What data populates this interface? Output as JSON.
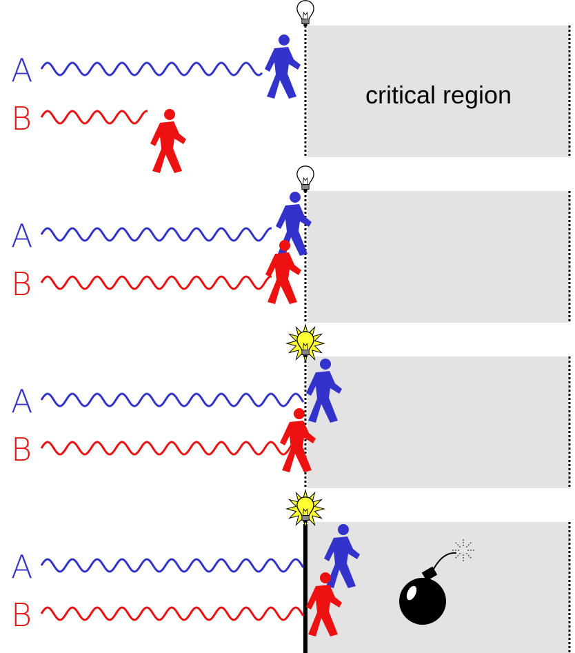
{
  "panels": [
    {
      "labels": [
        "A",
        "B"
      ],
      "region_label": "critical region"
    },
    {
      "labels": [
        "A",
        "B"
      ]
    },
    {
      "labels": [
        "A",
        "B"
      ]
    },
    {
      "labels": [
        "A",
        "B"
      ]
    }
  ]
}
